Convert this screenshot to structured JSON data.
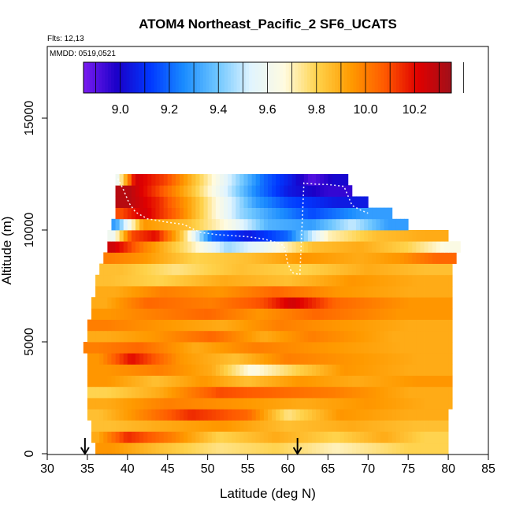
{
  "chart_data": {
    "type": "heatmap",
    "title": "ATOM4 Northeast_Pacific_2 SF6_UCATS",
    "flights_label": "Flts: 12,13",
    "dates_label": "MMDD: 0519,0521",
    "xlabel": "Latitude (deg N)",
    "ylabel": "Altitude (m)",
    "xlim": [
      30,
      85
    ],
    "ylim": [
      0,
      17500
    ],
    "xticks": [
      "30",
      "35",
      "40",
      "45",
      "50",
      "55",
      "60",
      "65",
      "70",
      "75",
      "80",
      "85"
    ],
    "yticks": [
      "0",
      "5000",
      "10000",
      "15000"
    ],
    "colorbar": {
      "range": [
        8.85,
        10.35
      ],
      "ticks": [
        "9.0",
        "9.2",
        "9.4",
        "9.6",
        "9.8",
        "10.0",
        "10.2"
      ],
      "colors": [
        "#7a1cf0",
        "#1a00c8",
        "#0038ff",
        "#1a8cff",
        "#6ec6ff",
        "#e0f4ff",
        "#fffbe0",
        "#ffd24a",
        "#ff9a00",
        "#ff5a00",
        "#e00000",
        "#a0101a"
      ]
    },
    "profile_marker_latitudes": [
      34.7,
      61.2
    ],
    "bands": [
      {
        "alt": [
          0,
          500
        ],
        "lat": [
          36.0,
          80.0
        ],
        "segments": [
          [
            36,
            40,
            9.95
          ],
          [
            40,
            48,
            9.85
          ],
          [
            48,
            55,
            9.75
          ],
          [
            55,
            62,
            9.8
          ],
          [
            62,
            70,
            9.7
          ],
          [
            70,
            80,
            9.8
          ]
        ]
      },
      {
        "alt": [
          500,
          1000
        ],
        "lat": [
          35.5,
          80.0
        ],
        "segments": [
          [
            35.5,
            37,
            9.9
          ],
          [
            37,
            43,
            10.15
          ],
          [
            43,
            48,
            10.0
          ],
          [
            48,
            55,
            9.8
          ],
          [
            55,
            62,
            9.9
          ],
          [
            62,
            70,
            9.8
          ],
          [
            70,
            74,
            9.9
          ],
          [
            74,
            80,
            9.8
          ]
        ]
      },
      {
        "alt": [
          1000,
          1500
        ],
        "lat": [
          35.5,
          80.0
        ],
        "segments": [
          [
            35.5,
            40,
            9.85
          ],
          [
            40,
            48,
            9.9
          ],
          [
            48,
            56,
            9.95
          ],
          [
            56,
            64,
            9.85
          ],
          [
            64,
            72,
            9.9
          ],
          [
            72,
            80,
            9.85
          ]
        ]
      },
      {
        "alt": [
          1500,
          2000
        ],
        "lat": [
          35.0,
          80.0
        ],
        "segments": [
          [
            35,
            38,
            9.85
          ],
          [
            38,
            43,
            9.95
          ],
          [
            43,
            53,
            10.15
          ],
          [
            53,
            57,
            10.05
          ],
          [
            57,
            63,
            9.75
          ],
          [
            63,
            70,
            9.95
          ],
          [
            70,
            80,
            9.9
          ]
        ]
      },
      {
        "alt": [
          2000,
          2500
        ],
        "lat": [
          35.0,
          80.5
        ],
        "segments": [
          [
            35,
            40,
            9.9
          ],
          [
            40,
            50,
            10.0
          ],
          [
            50,
            58,
            9.95
          ],
          [
            58,
            66,
            9.9
          ],
          [
            66,
            74,
            9.95
          ],
          [
            74,
            80.5,
            9.9
          ]
        ]
      },
      {
        "alt": [
          2500,
          3000
        ],
        "lat": [
          35.0,
          80.5
        ],
        "segments": [
          [
            35,
            40,
            9.8
          ],
          [
            40,
            48,
            9.9
          ],
          [
            48,
            55,
            10.1
          ],
          [
            55,
            62,
            10.05
          ],
          [
            62,
            70,
            10.0
          ],
          [
            70,
            80.5,
            9.9
          ]
        ]
      },
      {
        "alt": [
          3000,
          3500
        ],
        "lat": [
          35.0,
          80.5
        ],
        "segments": [
          [
            35,
            40,
            9.95
          ],
          [
            40,
            47,
            9.85
          ],
          [
            47,
            52,
            9.95
          ],
          [
            52,
            58,
            9.85
          ],
          [
            58,
            65,
            9.95
          ],
          [
            65,
            72,
            9.9
          ],
          [
            72,
            80.5,
            9.95
          ]
        ]
      },
      {
        "alt": [
          3500,
          4000
        ],
        "lat": [
          35.0,
          80.5
        ],
        "segments": [
          [
            35,
            40,
            9.95
          ],
          [
            40,
            48,
            10.0
          ],
          [
            48,
            53,
            9.9
          ],
          [
            53,
            58,
            9.65
          ],
          [
            58,
            64,
            9.8
          ],
          [
            64,
            70,
            9.95
          ],
          [
            70,
            80.5,
            9.9
          ]
        ]
      },
      {
        "alt": [
          4000,
          4500
        ],
        "lat": [
          35.0,
          80.5
        ],
        "segments": [
          [
            35,
            38,
            9.95
          ],
          [
            38,
            43,
            10.2
          ],
          [
            43,
            50,
            9.95
          ],
          [
            50,
            57,
            9.85
          ],
          [
            57,
            63,
            10.0
          ],
          [
            63,
            72,
            9.95
          ],
          [
            72,
            80.5,
            9.9
          ]
        ]
      },
      {
        "alt": [
          4500,
          5000
        ],
        "lat": [
          34.5,
          80.5
        ],
        "segments": [
          [
            34.5,
            38,
            10.0
          ],
          [
            38,
            45,
            10.05
          ],
          [
            45,
            52,
            9.9
          ],
          [
            52,
            60,
            10.0
          ],
          [
            60,
            68,
            9.95
          ],
          [
            68,
            80.5,
            9.9
          ]
        ]
      },
      {
        "alt": [
          5000,
          5500
        ],
        "lat": [
          35.0,
          80.5
        ],
        "segments": [
          [
            35,
            40,
            9.9
          ],
          [
            40,
            47,
            9.95
          ],
          [
            47,
            54,
            10.05
          ],
          [
            54,
            60,
            9.9
          ],
          [
            60,
            66,
            10.0
          ],
          [
            66,
            80.5,
            9.9
          ]
        ]
      },
      {
        "alt": [
          5500,
          6000
        ],
        "lat": [
          35.0,
          80.5
        ],
        "segments": [
          [
            35,
            40,
            10.0
          ],
          [
            40,
            48,
            9.95
          ],
          [
            48,
            56,
            9.9
          ],
          [
            56,
            62,
            10.0
          ],
          [
            62,
            70,
            9.95
          ],
          [
            70,
            80.5,
            9.9
          ]
        ]
      },
      {
        "alt": [
          6000,
          6500
        ],
        "lat": [
          35.5,
          80.5
        ],
        "segments": [
          [
            35.5,
            40,
            9.95
          ],
          [
            40,
            47,
            10.0
          ],
          [
            47,
            53,
            10.05
          ],
          [
            53,
            60,
            9.95
          ],
          [
            60,
            67,
            10.05
          ],
          [
            67,
            80.5,
            9.95
          ]
        ]
      },
      {
        "alt": [
          6500,
          7000
        ],
        "lat": [
          35.5,
          80.5
        ],
        "segments": [
          [
            35.5,
            39,
            9.9
          ],
          [
            39,
            46,
            10.05
          ],
          [
            46,
            55,
            10.0
          ],
          [
            55,
            59,
            10.1
          ],
          [
            59,
            62,
            10.25
          ],
          [
            62,
            70,
            10.05
          ],
          [
            70,
            80.5,
            9.95
          ]
        ]
      },
      {
        "alt": [
          7000,
          7500
        ],
        "lat": [
          36.0,
          80.5
        ],
        "segments": [
          [
            36,
            41,
            9.9
          ],
          [
            41,
            48,
            10.0
          ],
          [
            48,
            55,
            9.95
          ],
          [
            55,
            62,
            10.05
          ],
          [
            62,
            70,
            9.95
          ],
          [
            70,
            80.5,
            9.9
          ]
        ]
      },
      {
        "alt": [
          7500,
          8000
        ],
        "lat": [
          36.0,
          80.5
        ],
        "segments": [
          [
            36,
            40,
            9.85
          ],
          [
            40,
            48,
            9.8
          ],
          [
            48,
            56,
            9.9
          ],
          [
            56,
            64,
            9.85
          ],
          [
            64,
            72,
            9.95
          ],
          [
            72,
            80.5,
            9.9
          ]
        ]
      },
      {
        "alt": [
          8000,
          8500
        ],
        "lat": [
          36.5,
          80.5
        ],
        "segments": [
          [
            36.5,
            42,
            9.85
          ],
          [
            42,
            50,
            9.75
          ],
          [
            50,
            58,
            9.85
          ],
          [
            58,
            66,
            9.8
          ],
          [
            66,
            74,
            9.9
          ],
          [
            74,
            80.5,
            9.85
          ]
        ]
      },
      {
        "alt": [
          8500,
          9000
        ],
        "lat": [
          37.0,
          81.0
        ],
        "segments": [
          [
            37,
            39,
            10.0
          ],
          [
            39,
            45,
            9.95
          ],
          [
            45,
            52,
            9.8
          ],
          [
            52,
            58,
            9.85
          ],
          [
            58,
            66,
            9.95
          ],
          [
            66,
            72,
            9.9
          ],
          [
            72,
            76,
            9.95
          ],
          [
            76,
            81,
            10.05
          ]
        ]
      },
      {
        "alt": [
          9000,
          9500
        ],
        "lat": [
          37.5,
          81.5
        ],
        "segments": [
          [
            37.5,
            39,
            10.25
          ],
          [
            39,
            45,
            10.0
          ],
          [
            45,
            50,
            9.75
          ],
          [
            50,
            55,
            9.45
          ],
          [
            55,
            60,
            9.6
          ],
          [
            60,
            66,
            9.85
          ],
          [
            66,
            72,
            9.9
          ],
          [
            72,
            78,
            9.8
          ],
          [
            78,
            81.5,
            9.65
          ]
        ]
      },
      {
        "alt": [
          9500,
          10000
        ],
        "lat": [
          37.5,
          80.0
        ],
        "segments": [
          [
            37.5,
            39,
            9.6
          ],
          [
            39,
            42,
            10.1
          ],
          [
            42,
            45,
            10.2
          ],
          [
            45,
            49,
            9.8
          ],
          [
            49,
            52,
            9.2
          ],
          [
            52,
            58,
            9.05
          ],
          [
            58,
            62,
            9.2
          ],
          [
            62,
            68,
            9.7
          ],
          [
            68,
            74,
            9.85
          ],
          [
            74,
            80,
            9.9
          ]
        ]
      },
      {
        "alt": [
          10000,
          10500
        ],
        "lat": [
          38.0,
          75.0
        ],
        "segments": [
          [
            38,
            39,
            9.3
          ],
          [
            39,
            45,
            9.95
          ],
          [
            45,
            50,
            9.85
          ],
          [
            50,
            55,
            9.65
          ],
          [
            55,
            60,
            9.35
          ],
          [
            60,
            66,
            9.3
          ],
          [
            66,
            70,
            9.5
          ],
          [
            70,
            75,
            9.3
          ]
        ]
      },
      {
        "alt": [
          10500,
          11000
        ],
        "lat": [
          38.5,
          73.0
        ],
        "segments": [
          [
            38.5,
            40,
            10.1
          ],
          [
            40,
            44,
            10.25
          ],
          [
            44,
            48,
            10.05
          ],
          [
            48,
            52,
            9.75
          ],
          [
            52,
            56,
            9.45
          ],
          [
            56,
            60,
            9.3
          ],
          [
            60,
            66,
            9.15
          ],
          [
            66,
            73,
            9.3
          ]
        ]
      },
      {
        "alt": [
          11000,
          11500
        ],
        "lat": [
          38.5,
          70.0
        ],
        "segments": [
          [
            38.5,
            42,
            10.3
          ],
          [
            42,
            46,
            10.15
          ],
          [
            46,
            50,
            9.9
          ],
          [
            50,
            54,
            9.6
          ],
          [
            54,
            58,
            9.3
          ],
          [
            58,
            62,
            9.15
          ],
          [
            62,
            70,
            9.05
          ]
        ]
      },
      {
        "alt": [
          11500,
          12000
        ],
        "lat": [
          38.5,
          68.0
        ],
        "segments": [
          [
            38.5,
            42,
            10.3
          ],
          [
            42,
            46,
            10.1
          ],
          [
            46,
            50,
            9.85
          ],
          [
            50,
            54,
            9.55
          ],
          [
            54,
            58,
            9.25
          ],
          [
            58,
            62,
            9.05
          ],
          [
            62,
            68,
            8.95
          ]
        ]
      },
      {
        "alt": [
          12000,
          12500
        ],
        "lat": [
          38.5,
          67.5
        ],
        "segments": [
          [
            38.5,
            39,
            9.6
          ],
          [
            39,
            43,
            10.25
          ],
          [
            43,
            47,
            10.1
          ],
          [
            47,
            51,
            9.8
          ],
          [
            51,
            55,
            9.5
          ],
          [
            55,
            59,
            9.2
          ],
          [
            59,
            62,
            9.05
          ],
          [
            62,
            64,
            8.9
          ],
          [
            64,
            67.5,
            9.0
          ]
        ]
      }
    ],
    "flight_track": [
      [
        38.8,
        12300
      ],
      [
        39.5,
        11800
      ],
      [
        40.2,
        11200
      ],
      [
        41.0,
        10800
      ],
      [
        42.5,
        10500
      ],
      [
        45.0,
        10350
      ],
      [
        47.0,
        10250
      ],
      [
        49.0,
        9900
      ],
      [
        51.0,
        9800
      ],
      [
        53.0,
        9750
      ],
      [
        55.0,
        9700
      ],
      [
        57.0,
        9600
      ],
      [
        58.5,
        9450
      ],
      [
        59.5,
        9300
      ],
      [
        60.0,
        8500
      ],
      [
        60.5,
        8100
      ],
      [
        61.5,
        8000
      ],
      [
        62.0,
        12100
      ],
      [
        63.5,
        12050
      ],
      [
        65.0,
        12030
      ],
      [
        67.0,
        11950
      ],
      [
        68.0,
        11100
      ],
      [
        69.0,
        10900
      ],
      [
        70.0,
        10750
      ]
    ]
  }
}
